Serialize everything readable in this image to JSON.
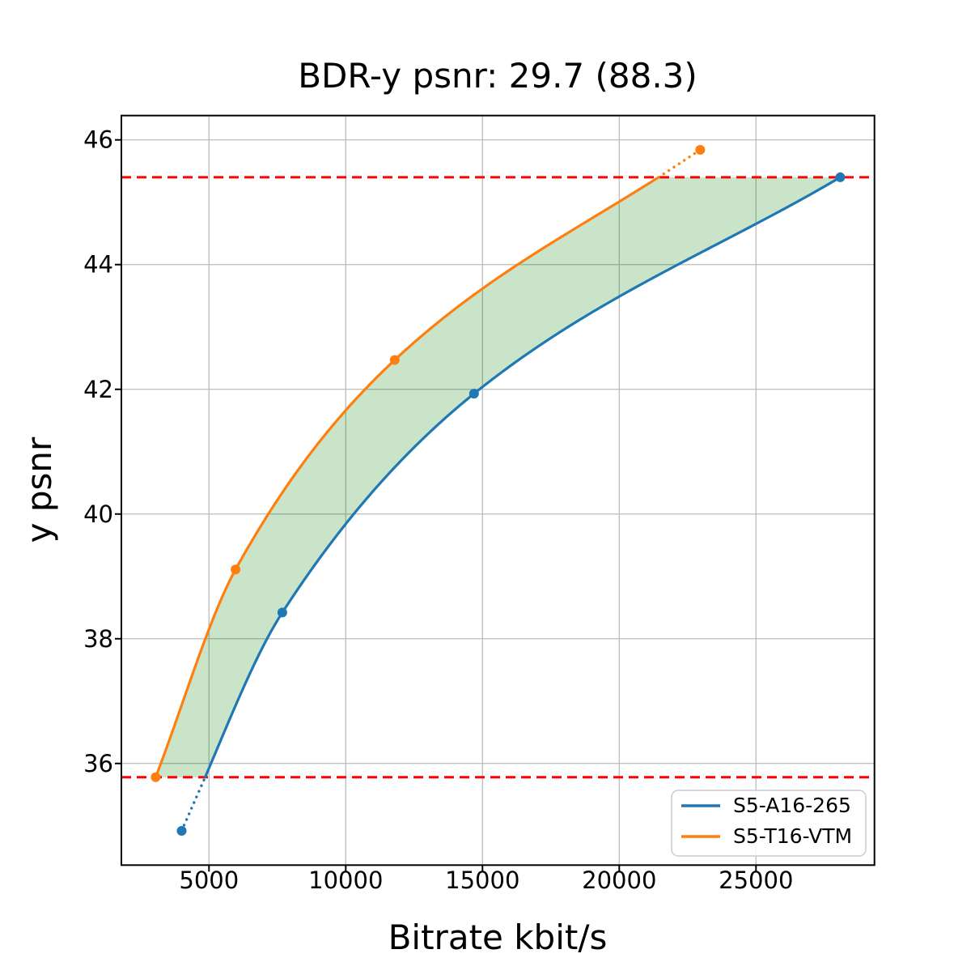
{
  "title": "BDR-y psnr: 29.7 (88.3)",
  "chart_data": {
    "type": "line",
    "title": "BDR-y psnr: 29.7 (88.3)",
    "xlabel": "Bitrate kbit/s",
    "ylabel": "y psnr",
    "xlim": [
      1796,
      29332
    ],
    "ylim": [
      34.37,
      46.39
    ],
    "xticks": [
      5000,
      10000,
      15000,
      20000,
      25000
    ],
    "yticks": [
      36,
      38,
      40,
      42,
      44,
      46
    ],
    "grid": true,
    "legend_position": "lower right",
    "interpolation": "pchip",
    "series": [
      {
        "name": "S5-A16-265",
        "color": "#1f77b4",
        "points": [
          [
            4000,
            34.92
          ],
          [
            7680,
            38.42
          ],
          [
            14690,
            41.93
          ],
          [
            28080,
            45.4
          ]
        ]
      },
      {
        "name": "S5-T16-VTM",
        "color": "#ff7f0e",
        "points": [
          [
            3050,
            35.78
          ],
          [
            5970,
            39.11
          ],
          [
            11790,
            42.47
          ],
          [
            22960,
            45.84
          ]
        ]
      }
    ],
    "overlap_interval": {
      "psnr_low": 35.78,
      "psnr_high": 45.4,
      "line_color": "#ff0000",
      "line_style": "dashed"
    },
    "fill_between": {
      "color": "#008000",
      "opacity": 0.21
    }
  },
  "colors": {
    "grid": "#bbbbbb",
    "spine": "#000000",
    "background": "#ffffff"
  }
}
